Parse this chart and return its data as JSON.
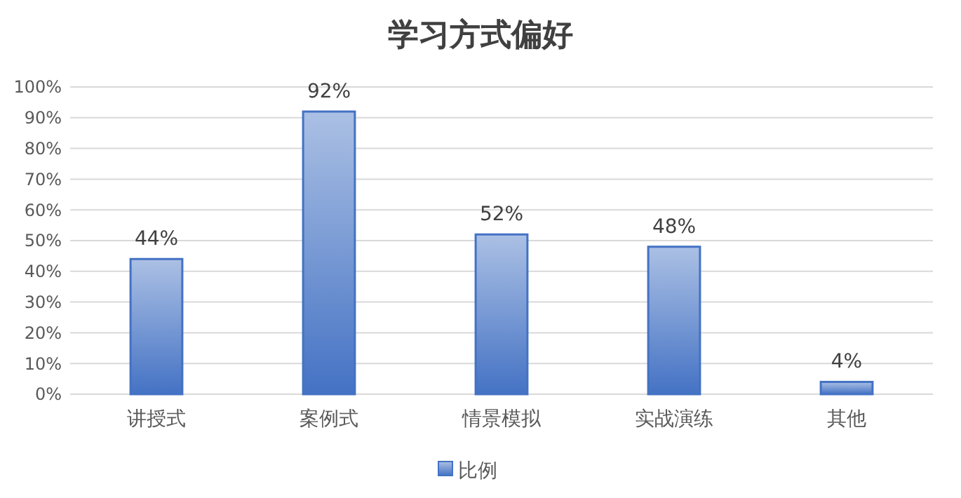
{
  "chart_data": {
    "type": "bar",
    "title": "学习方式偏好",
    "categories": [
      "讲授式",
      "案例式",
      "情景模拟",
      "实战演练",
      "其他"
    ],
    "series": [
      {
        "name": "比例",
        "color": "#4472c4",
        "values": [
          44,
          92,
          52,
          48,
          4
        ],
        "value_labels": [
          "44%",
          "92%",
          "52%",
          "48%",
          "4%"
        ]
      }
    ],
    "ylim": [
      0,
      100
    ],
    "yticks": [
      {
        "value": 0,
        "label": "0%"
      },
      {
        "value": 10,
        "label": "10%"
      },
      {
        "value": 20,
        "label": "20%"
      },
      {
        "value": 30,
        "label": "30%"
      },
      {
        "value": 40,
        "label": "40%"
      },
      {
        "value": 50,
        "label": "50%"
      },
      {
        "value": 60,
        "label": "60%"
      },
      {
        "value": 70,
        "label": "70%"
      },
      {
        "value": 80,
        "label": "80%"
      },
      {
        "value": 90,
        "label": "90%"
      },
      {
        "value": 100,
        "label": "100%"
      }
    ],
    "grid": "y",
    "legend": "bottom"
  }
}
